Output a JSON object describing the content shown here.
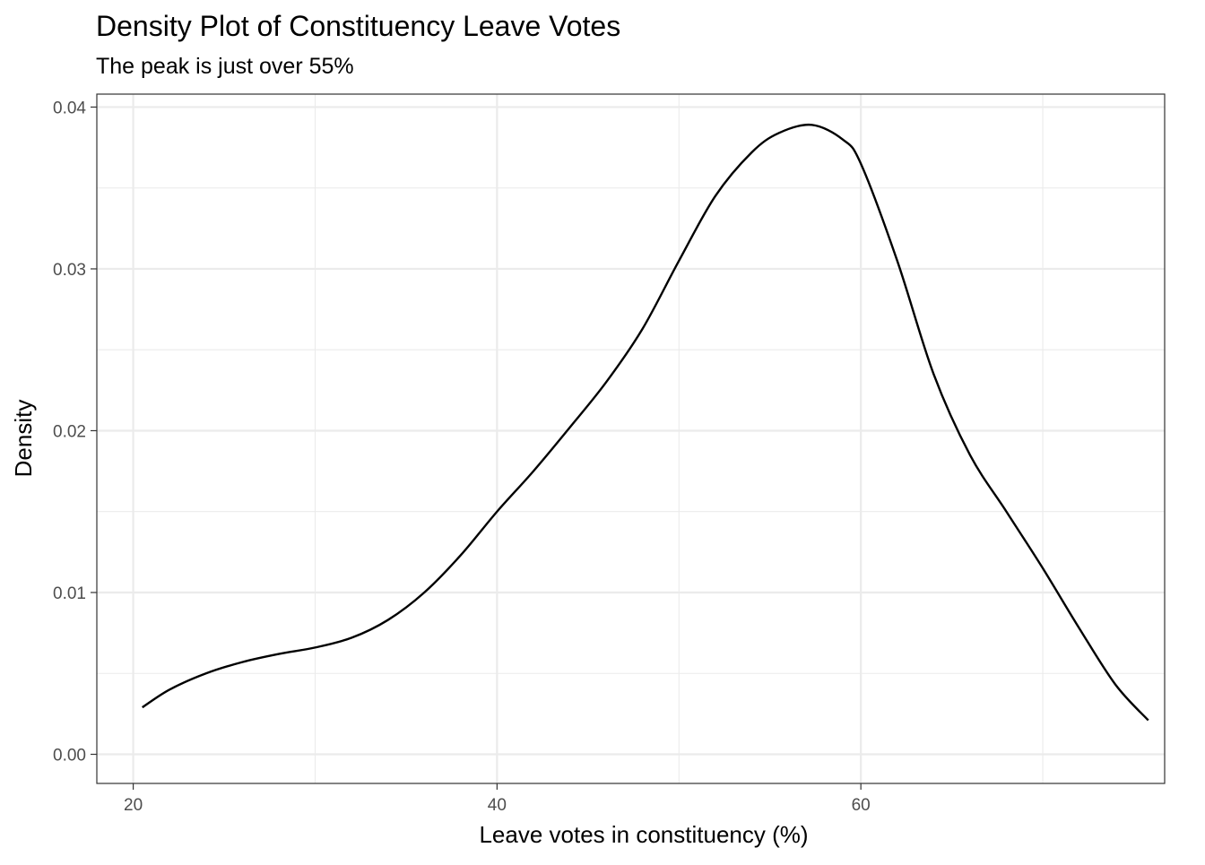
{
  "chart_data": {
    "type": "line",
    "title": "Density Plot of Constituency Leave Votes",
    "subtitle": "The peak is just over 55%",
    "xlabel": "Leave votes in constituency (%)",
    "ylabel": "Density",
    "xlim": [
      18,
      76.7
    ],
    "ylim": [
      -0.0018,
      0.0408
    ],
    "x_ticks": [
      20,
      40,
      60
    ],
    "x_tick_labels": [
      "20",
      "40",
      "60"
    ],
    "x_minor_ticks": [
      30,
      50,
      70
    ],
    "y_ticks": [
      0,
      0.01,
      0.02,
      0.03,
      0.04
    ],
    "y_tick_labels": [
      "0.00",
      "0.01",
      "0.02",
      "0.03",
      "0.04"
    ],
    "y_minor_ticks": [
      0.005,
      0.015,
      0.025,
      0.035
    ],
    "grid": true,
    "legend": "none",
    "colors": {
      "line": "#000000",
      "grid": "#ebebeb",
      "panel_border": "#333333",
      "tick_text": "#4d4d4d"
    },
    "series": [
      {
        "x": [
          20.5,
          22,
          24,
          26,
          28,
          30,
          32,
          34,
          36,
          38,
          40,
          42,
          44,
          46,
          48,
          50,
          52,
          54,
          55.5,
          57.3,
          59,
          60,
          62,
          64,
          66,
          68,
          70,
          72,
          74,
          75.8
        ],
        "y": [
          0.0029,
          0.004,
          0.005,
          0.0057,
          0.0062,
          0.0066,
          0.0072,
          0.0083,
          0.01,
          0.0123,
          0.015,
          0.0175,
          0.0202,
          0.023,
          0.0263,
          0.0305,
          0.0345,
          0.0372,
          0.0384,
          0.0389,
          0.038,
          0.0365,
          0.0305,
          0.0235,
          0.0185,
          0.015,
          0.0115,
          0.0078,
          0.0043,
          0.0021
        ]
      }
    ]
  }
}
